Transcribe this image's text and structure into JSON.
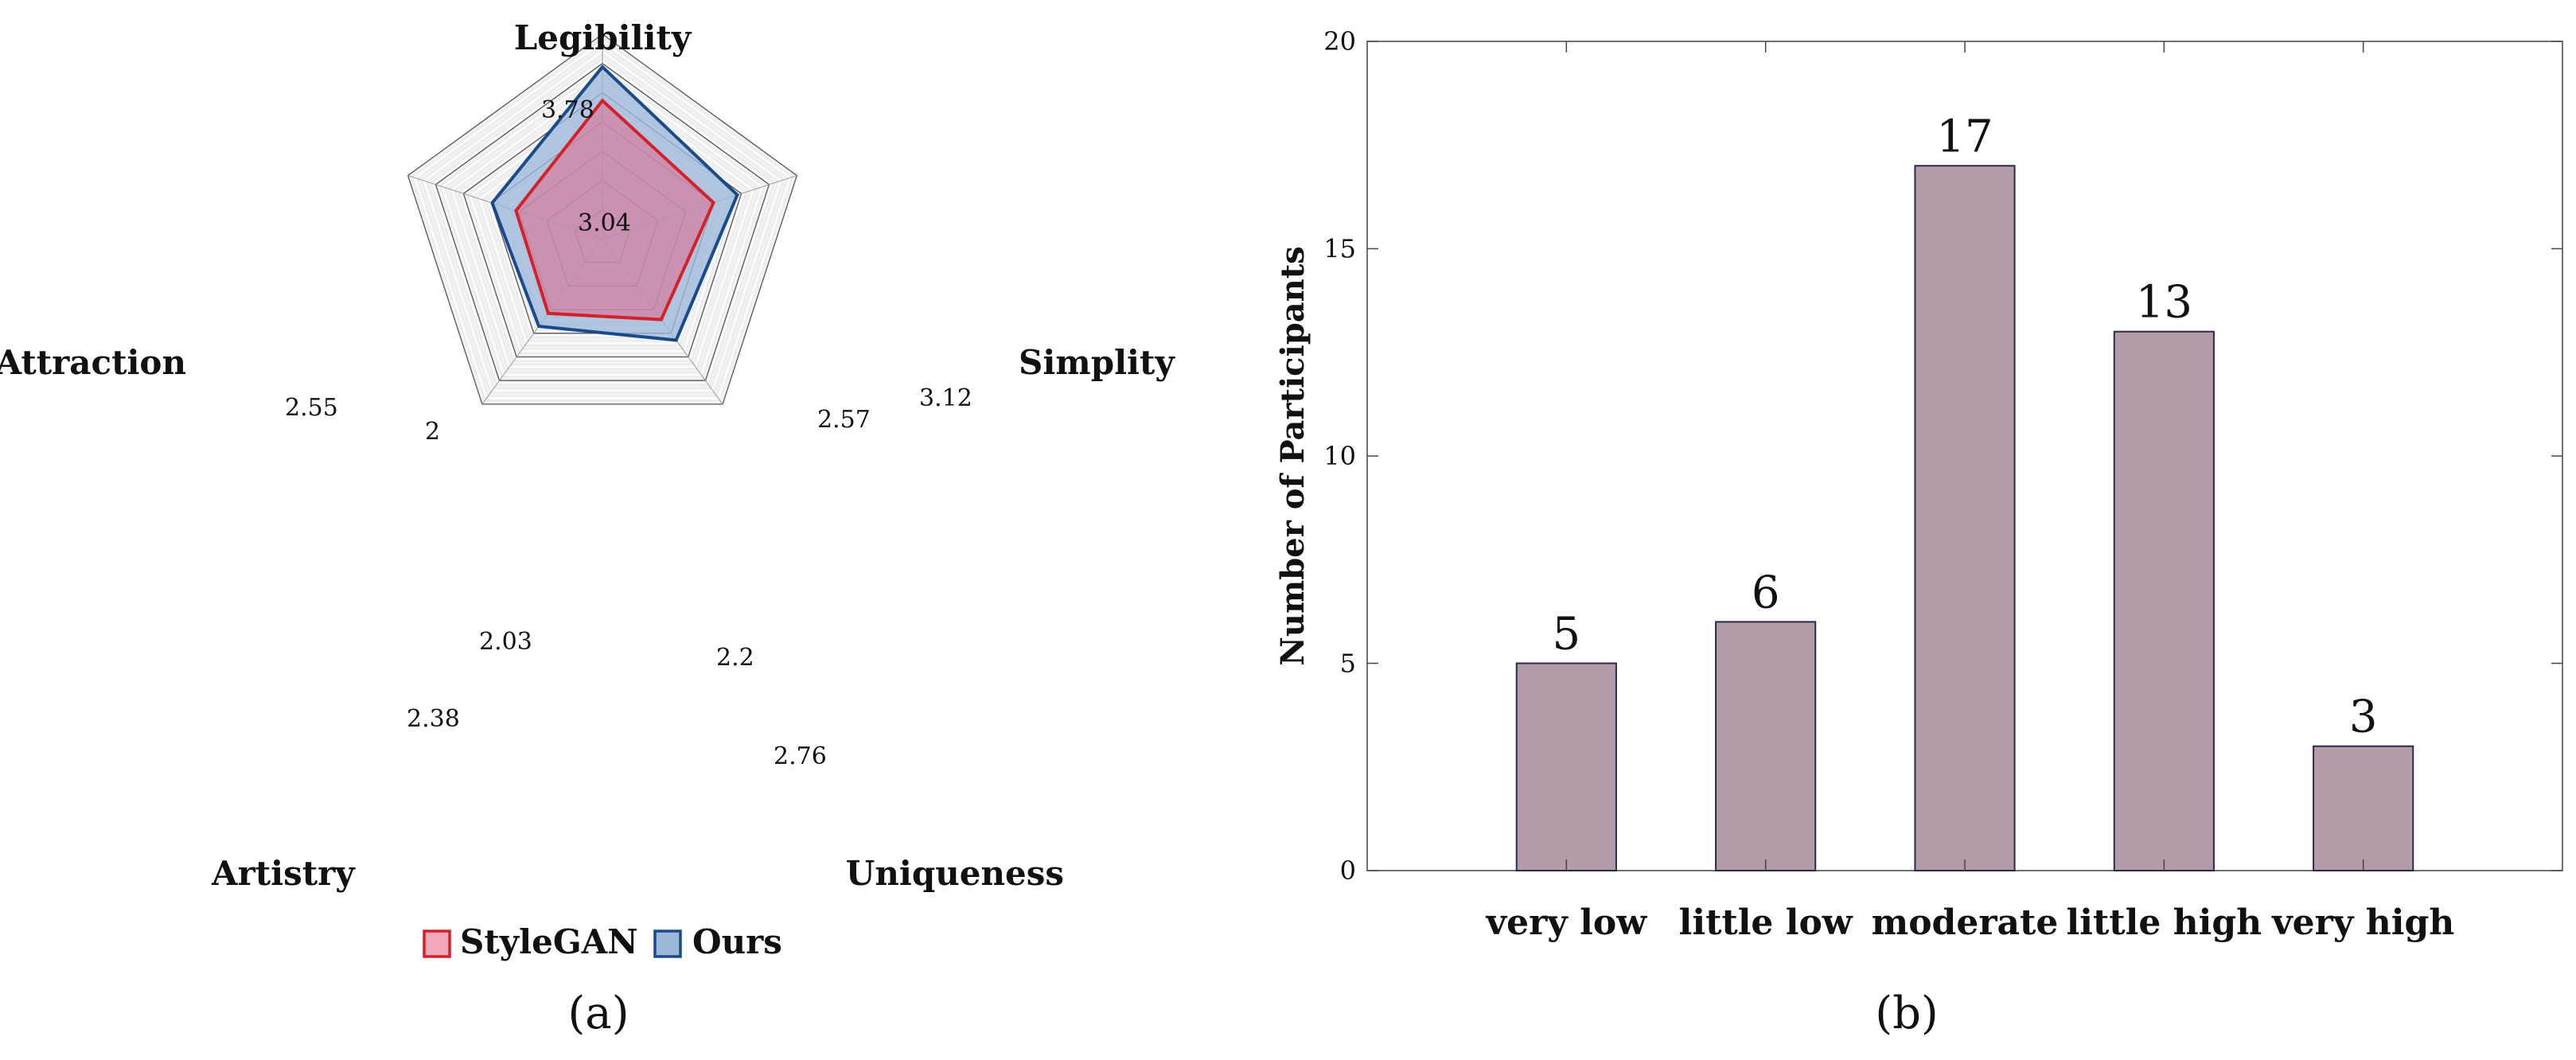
{
  "chart_data": [
    {
      "type": "radar",
      "panel_label": "(a)",
      "axes": [
        "Legibility",
        "Simplity",
        "Uniqueness",
        "Artistry",
        "Attraction"
      ],
      "scale_max": 4.5,
      "rings": 7,
      "series": [
        {
          "name": "StyleGAN",
          "values": [
            3.04,
            2.57,
            2.2,
            2.03,
            2.0
          ],
          "labels": [
            "3.04",
            "2.57",
            "2.2",
            "2.03",
            "2"
          ]
        },
        {
          "name": "Ours",
          "values": [
            3.78,
            3.12,
            2.76,
            2.38,
            2.55
          ],
          "labels": [
            "3.78",
            "3.12",
            "2.76",
            "2.38",
            "2.55"
          ]
        }
      ],
      "legend": [
        "StyleGAN",
        "Ours"
      ],
      "legend_position": "bottom",
      "colors": {
        "StyleGAN_stroke": "#d4202b",
        "StyleGAN_fill": "#e06a8a",
        "Ours_stroke": "#1a4a8a",
        "Ours_fill": "#9cb7d8"
      }
    },
    {
      "type": "bar",
      "panel_label": "(b)",
      "categories": [
        "very low",
        "little low",
        "moderate",
        "little high",
        "very high"
      ],
      "values": [
        5,
        6,
        17,
        13,
        3
      ],
      "data_labels": [
        "5",
        "6",
        "17",
        "13",
        "3"
      ],
      "ylabel": "Number of Participants",
      "xlabel": "",
      "ylim": [
        0,
        20
      ],
      "yticks": [
        "0",
        "5",
        "10",
        "15",
        "20"
      ],
      "bar_color": "#b39ba8",
      "grid": false
    }
  ]
}
